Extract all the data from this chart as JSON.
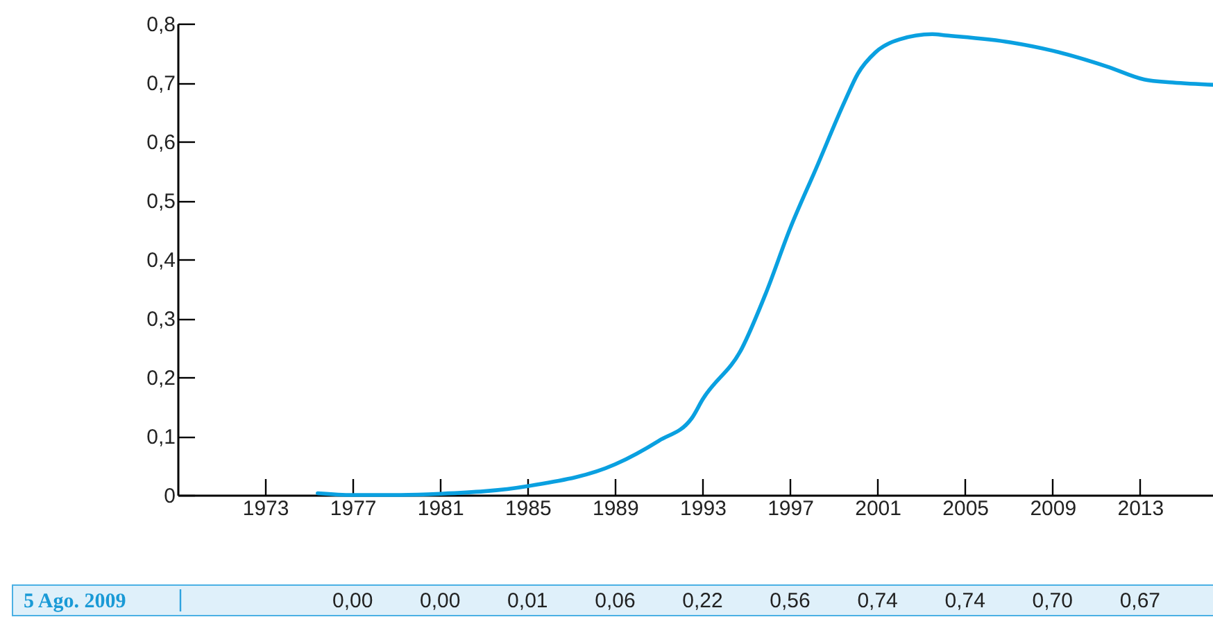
{
  "chart_data": {
    "type": "line",
    "x": [
      1975.4,
      1977,
      1979.2,
      1981,
      1985,
      1989,
      1991,
      1992.5,
      1993,
      1994.8,
      1995.9,
      1997,
      1998.2,
      1999.5,
      2000.1,
      2000.9,
      2002,
      2003.5,
      2004.1,
      2007.1,
      2009,
      2011.5,
      2013.2,
      2014.5,
      2016.4
    ],
    "series": [
      {
        "color": "#0aa0e0",
        "values": [
          0.003,
          0.0,
          0.0,
          0.002,
          0.015,
          0.052,
          0.092,
          0.13,
          0.162,
          0.249,
          0.343,
          0.452,
          0.555,
          0.668,
          0.715,
          0.751,
          0.773,
          0.782,
          0.78,
          0.768,
          0.754,
          0.727,
          0.705,
          0.7,
          0.696
        ]
      }
    ],
    "xlim": [
      1969,
      2016.4
    ],
    "xticks": [
      1973,
      1977,
      1981,
      1985,
      1989,
      1993,
      1997,
      2001,
      2005,
      2009,
      2013
    ],
    "ylim": [
      0,
      0.8
    ],
    "yticks": [
      0,
      {
        "value": 0.1,
        "label": "0,1"
      },
      {
        "value": 0.2,
        "label": "0,2"
      },
      {
        "value": 0.3,
        "label": "0,3"
      },
      {
        "value": 0.4,
        "label": "0,4"
      },
      {
        "value": 0.5,
        "label": "0,5"
      },
      {
        "value": 0.6,
        "label": "0,6"
      },
      {
        "value": 0.7,
        "label": "0,7"
      },
      {
        "value": 0.8,
        "label": "0,8"
      }
    ],
    "annotations": [
      "5 Ago. 2009",
      "0,00",
      "0,00",
      "0,01",
      "0,06",
      "0,22",
      "0,56",
      "0,74",
      "0,74",
      "0,70",
      "0,67"
    ]
  }
}
